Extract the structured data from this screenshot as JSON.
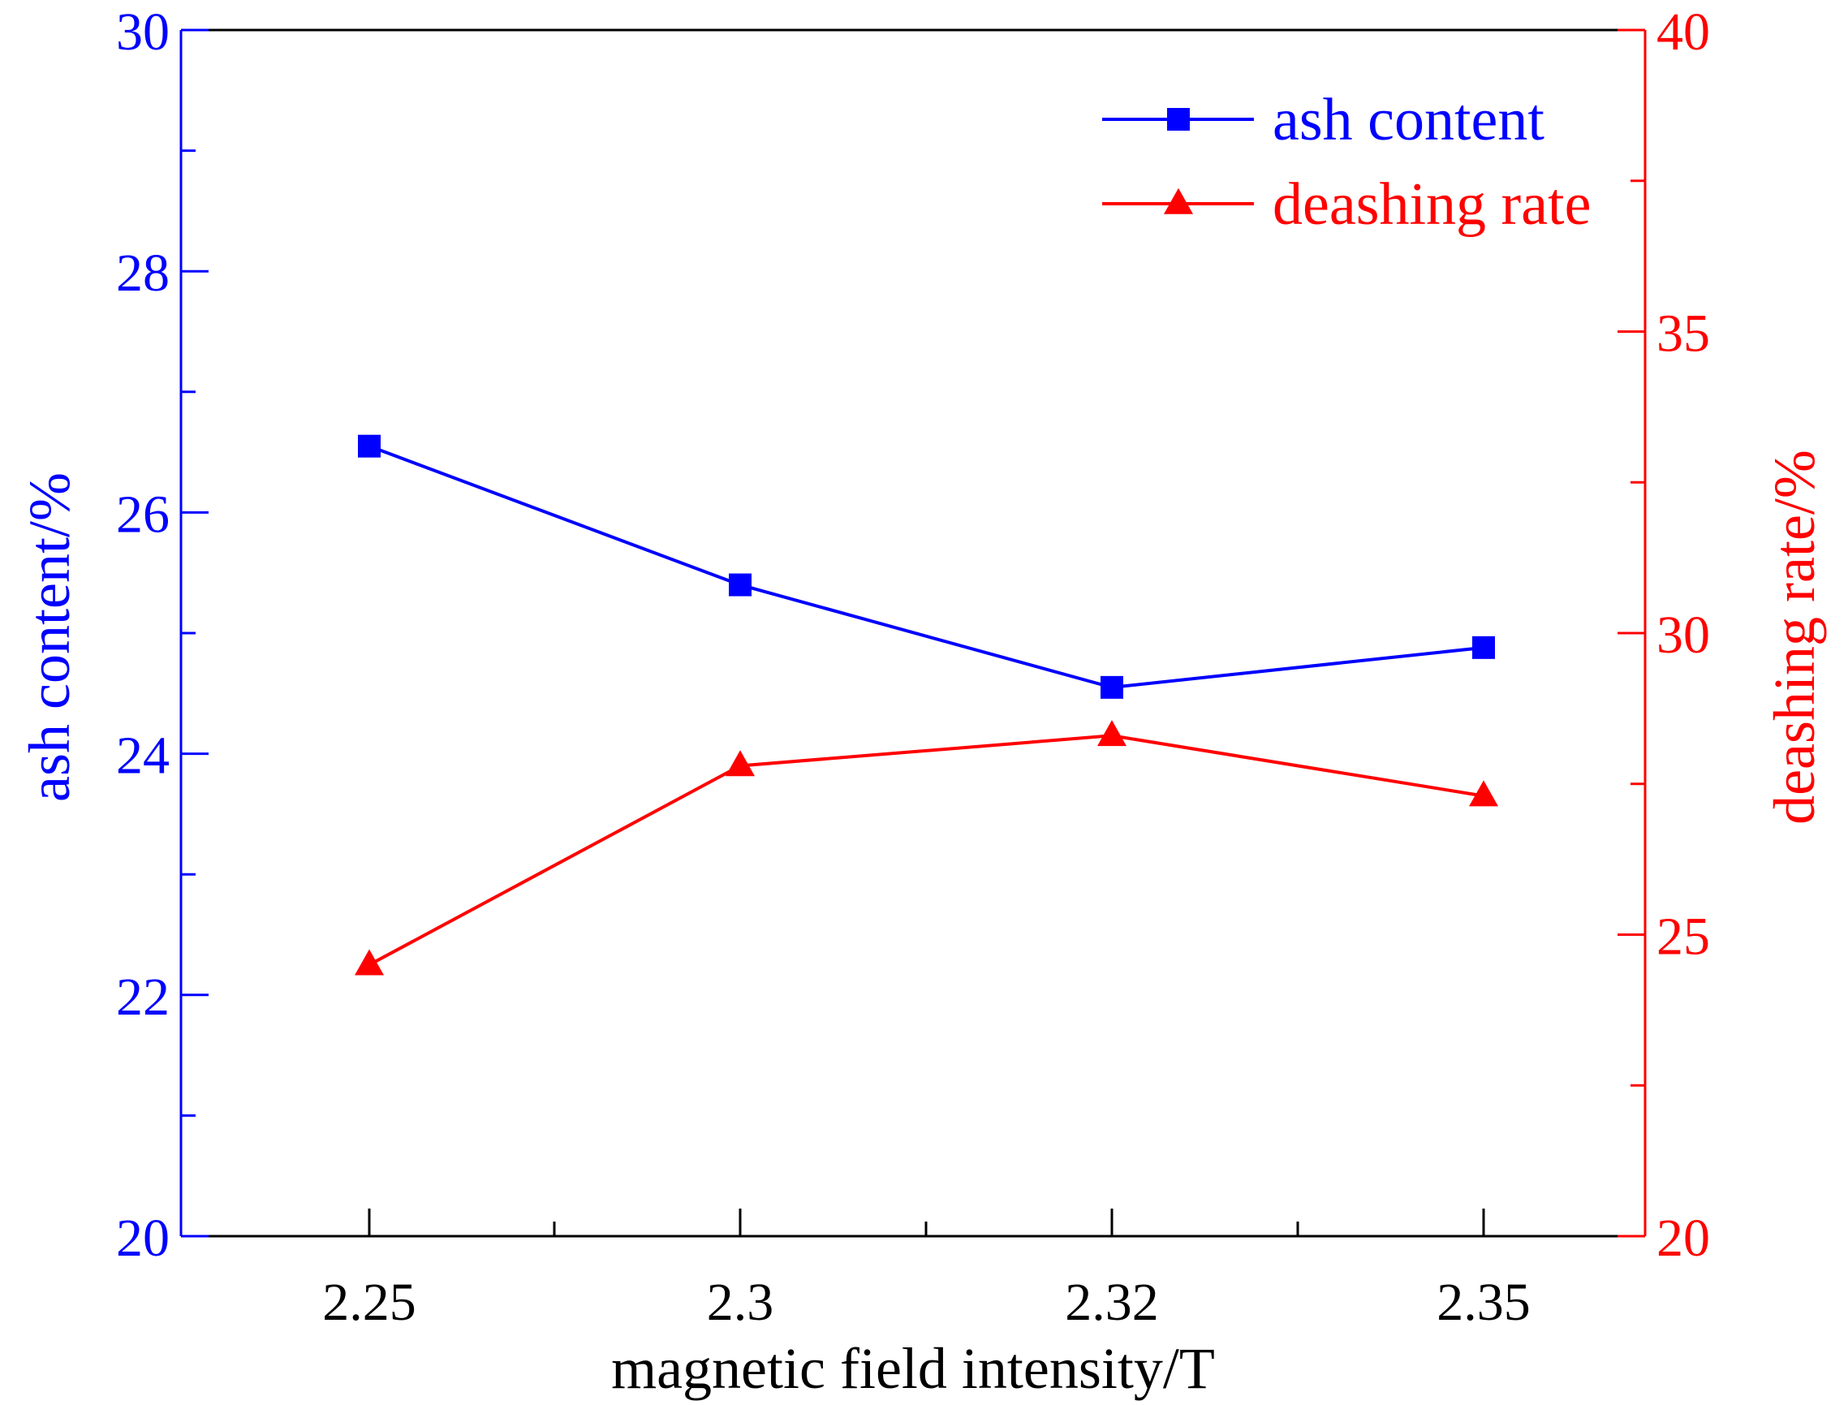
{
  "chart_data": {
    "type": "line",
    "title": "",
    "xlabel": "magnetic field intensity/T",
    "categories": [
      "2.25",
      "2.3",
      "2.32",
      "2.35"
    ],
    "y_left": {
      "label": "ash content/%",
      "range": [
        20,
        30
      ],
      "ticks": [
        "20",
        "22",
        "24",
        "26",
        "28",
        "30"
      ],
      "color": "#0000FF"
    },
    "y_right": {
      "label": "deashing rate/%",
      "range": [
        20,
        40
      ],
      "ticks": [
        "20",
        "25",
        "30",
        "35",
        "40"
      ],
      "color": "#FF0000"
    },
    "series": [
      {
        "name": "ash content",
        "axis": "left",
        "color": "#0000FF",
        "marker": "square",
        "values": [
          26.55,
          25.4,
          24.55,
          24.88
        ]
      },
      {
        "name": "deashing rate",
        "axis": "right",
        "color": "#FF0000",
        "marker": "triangle",
        "values": [
          24.5,
          27.8,
          28.3,
          27.3
        ]
      }
    ],
    "legend_position": "top-right",
    "grid": false
  }
}
